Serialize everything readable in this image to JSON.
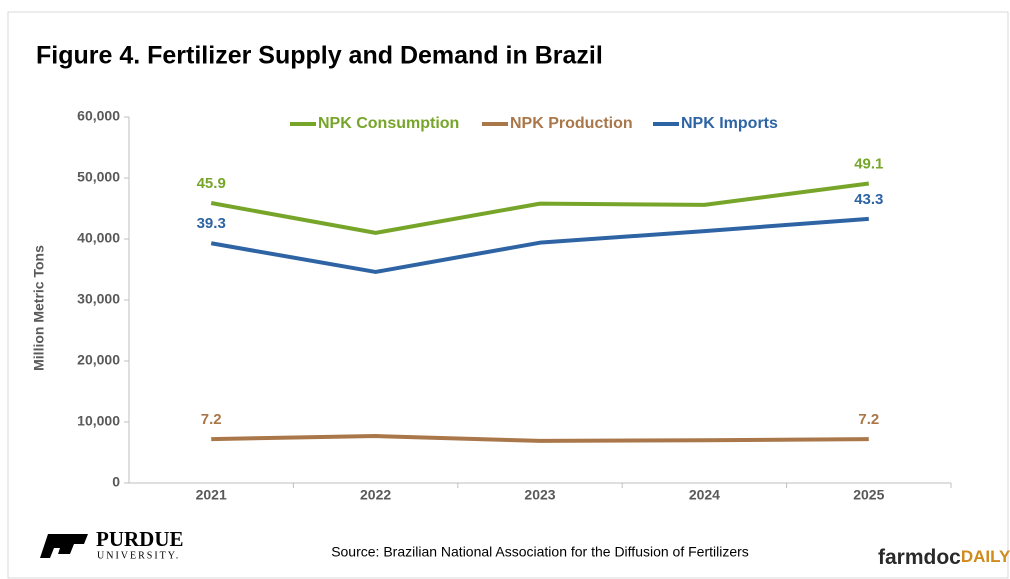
{
  "chart_data": {
    "type": "line",
    "title": "Figure 4. Fertilizer Supply and Demand in Brazil",
    "y_label": "Million Metric Tons",
    "categories": [
      "2021",
      "2022",
      "2023",
      "2024",
      "2025"
    ],
    "series": [
      {
        "name": "NPK Consumption",
        "color": "#77a52a",
        "values": [
          45900,
          41000,
          45800,
          45600,
          49100
        ],
        "value_labels": [
          "45.9",
          null,
          null,
          null,
          "49.1"
        ]
      },
      {
        "name": "NPK Production",
        "color": "#a9774a",
        "values": [
          7200,
          7700,
          6900,
          7000,
          7200
        ],
        "value_labels": [
          "7.2",
          null,
          null,
          null,
          "7.2"
        ]
      },
      {
        "name": "NPK Imports",
        "color": "#2e64a4",
        "values": [
          39300,
          34600,
          39400,
          41300,
          43300
        ],
        "value_labels": [
          "39.3",
          null,
          null,
          null,
          "43.3"
        ]
      }
    ],
    "ylim": [
      0,
      60000
    ],
    "yticks": [
      0,
      {
        "value": 10000,
        "label": "10,000"
      },
      {
        "value": 20000,
        "label": "20,000"
      },
      {
        "value": 30000,
        "label": "30,000"
      },
      {
        "value": 40000,
        "label": "40,000"
      },
      {
        "value": 50000,
        "label": "50,000"
      },
      {
        "value": 60000,
        "label": "60,000"
      }
    ],
    "grid": false,
    "legend": "top"
  },
  "footer": {
    "source": "Source: Brazilian National Association for the Diffusion of Fertilizers",
    "logo_left": "PURDUE",
    "logo_left_sub": "UNIVERSITY.",
    "logo_right": "farmdoc",
    "logo_right_sub": "DAILY"
  }
}
